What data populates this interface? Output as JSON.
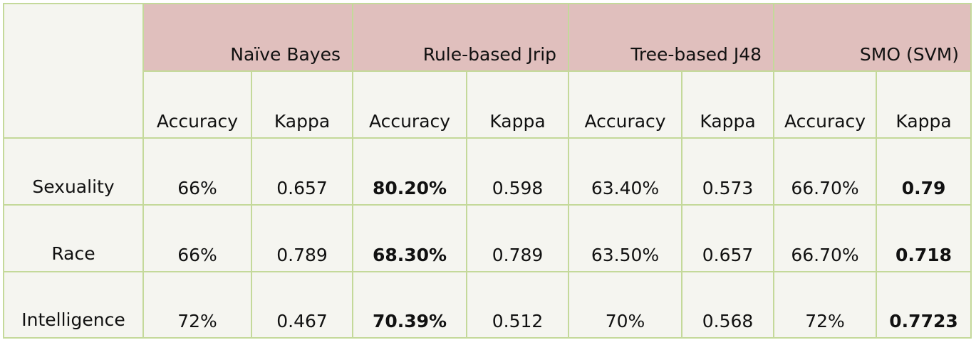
{
  "models": [
    {
      "name": "Naïve Bayes"
    },
    {
      "name": "Rule-based Jrip"
    },
    {
      "name": "Tree-based J48"
    },
    {
      "name": "SMO (SVM)"
    }
  ],
  "metrics": [
    "Accuracy",
    "Kappa",
    "Accuracy",
    "Kappa",
    "Accuracy",
    "Kappa",
    "Accuracy",
    "Kappa"
  ],
  "rows": [
    {
      "label": "Sexuality",
      "cells": [
        "66%",
        "0.657",
        "80.20%",
        "0.598",
        "63.40%",
        "0.573",
        "66.70%",
        "0.79"
      ]
    },
    {
      "label": "Race",
      "cells": [
        "66%",
        "0.789",
        "68.30%",
        "0.789",
        "63.50%",
        "0.657",
        "66.70%",
        "0.718"
      ]
    },
    {
      "label": "Intelligence",
      "cells": [
        "72%",
        "0.467",
        "70.39%",
        "0.512",
        "70%",
        "0.568",
        "72%",
        "0.7723"
      ]
    }
  ],
  "emphasis": {
    "bold_columns": [
      2,
      7
    ]
  },
  "colors": {
    "header_fill": "#e0bfbd",
    "border": "#c4d99a",
    "body_fill": "#f5f5f0"
  }
}
